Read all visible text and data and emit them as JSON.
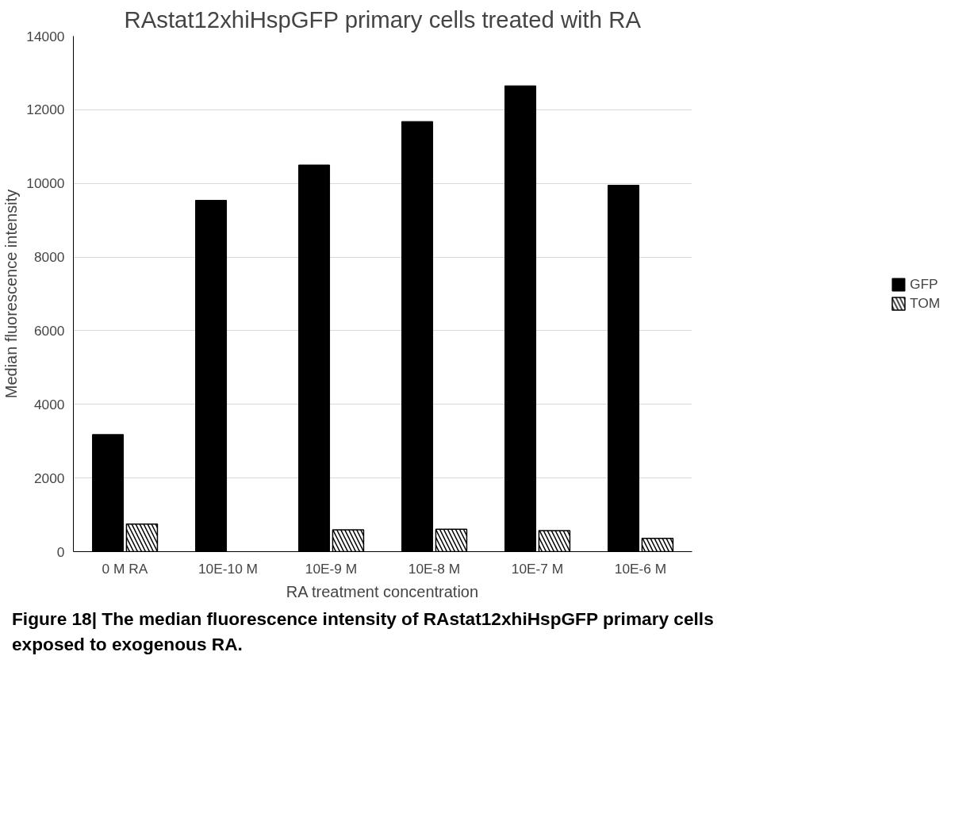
{
  "chart_data": {
    "type": "bar",
    "title": "RAstat12xhiHspGFP primary cells treated with RA",
    "xlabel": "RA treatment concentration",
    "ylabel": "Median fluorescence intensity",
    "categories": [
      "0 M RA",
      "10E-10 M",
      "10E-9 M",
      "10E-8 M",
      "10E-7 M",
      "10E-6 M"
    ],
    "series": [
      {
        "name": "GFP",
        "color": "#000000",
        "values": [
          3180,
          9540,
          10500,
          11680,
          12650,
          9950
        ]
      },
      {
        "name": "TOM",
        "color": "#000000",
        "values": [
          750,
          null,
          590,
          610,
          570,
          360
        ]
      }
    ],
    "ylim": [
      0,
      14000
    ],
    "yticks": [
      0,
      2000,
      4000,
      6000,
      8000,
      10000,
      12000,
      14000
    ],
    "grid": "y",
    "legend": "right",
    "annotations": [
      "Figure 18| The median fluorescence intensity of RAstat12xhiHspGFP primary cells exposed to exogenous RA."
    ]
  }
}
